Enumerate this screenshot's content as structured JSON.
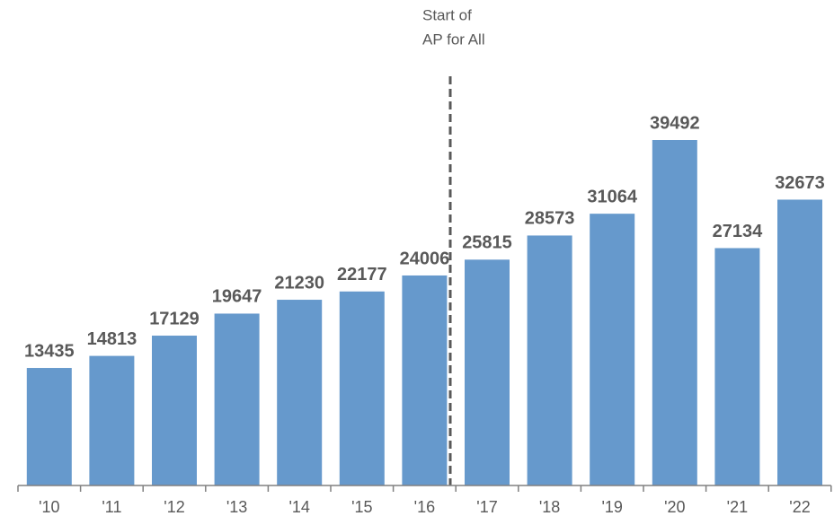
{
  "chart_data": {
    "type": "bar",
    "categories": [
      "'10",
      "'11",
      "'12",
      "'13",
      "'14",
      "'15",
      "'16",
      "'17",
      "'18",
      "'19",
      "'20",
      "'21",
      "'22"
    ],
    "values": [
      13435,
      14813,
      17129,
      19647,
      21230,
      22177,
      24006,
      25815,
      28573,
      31064,
      39492,
      27134,
      32673
    ],
    "color": "#6699cc",
    "annotation": [
      "Start of",
      "AP for All"
    ]
  }
}
